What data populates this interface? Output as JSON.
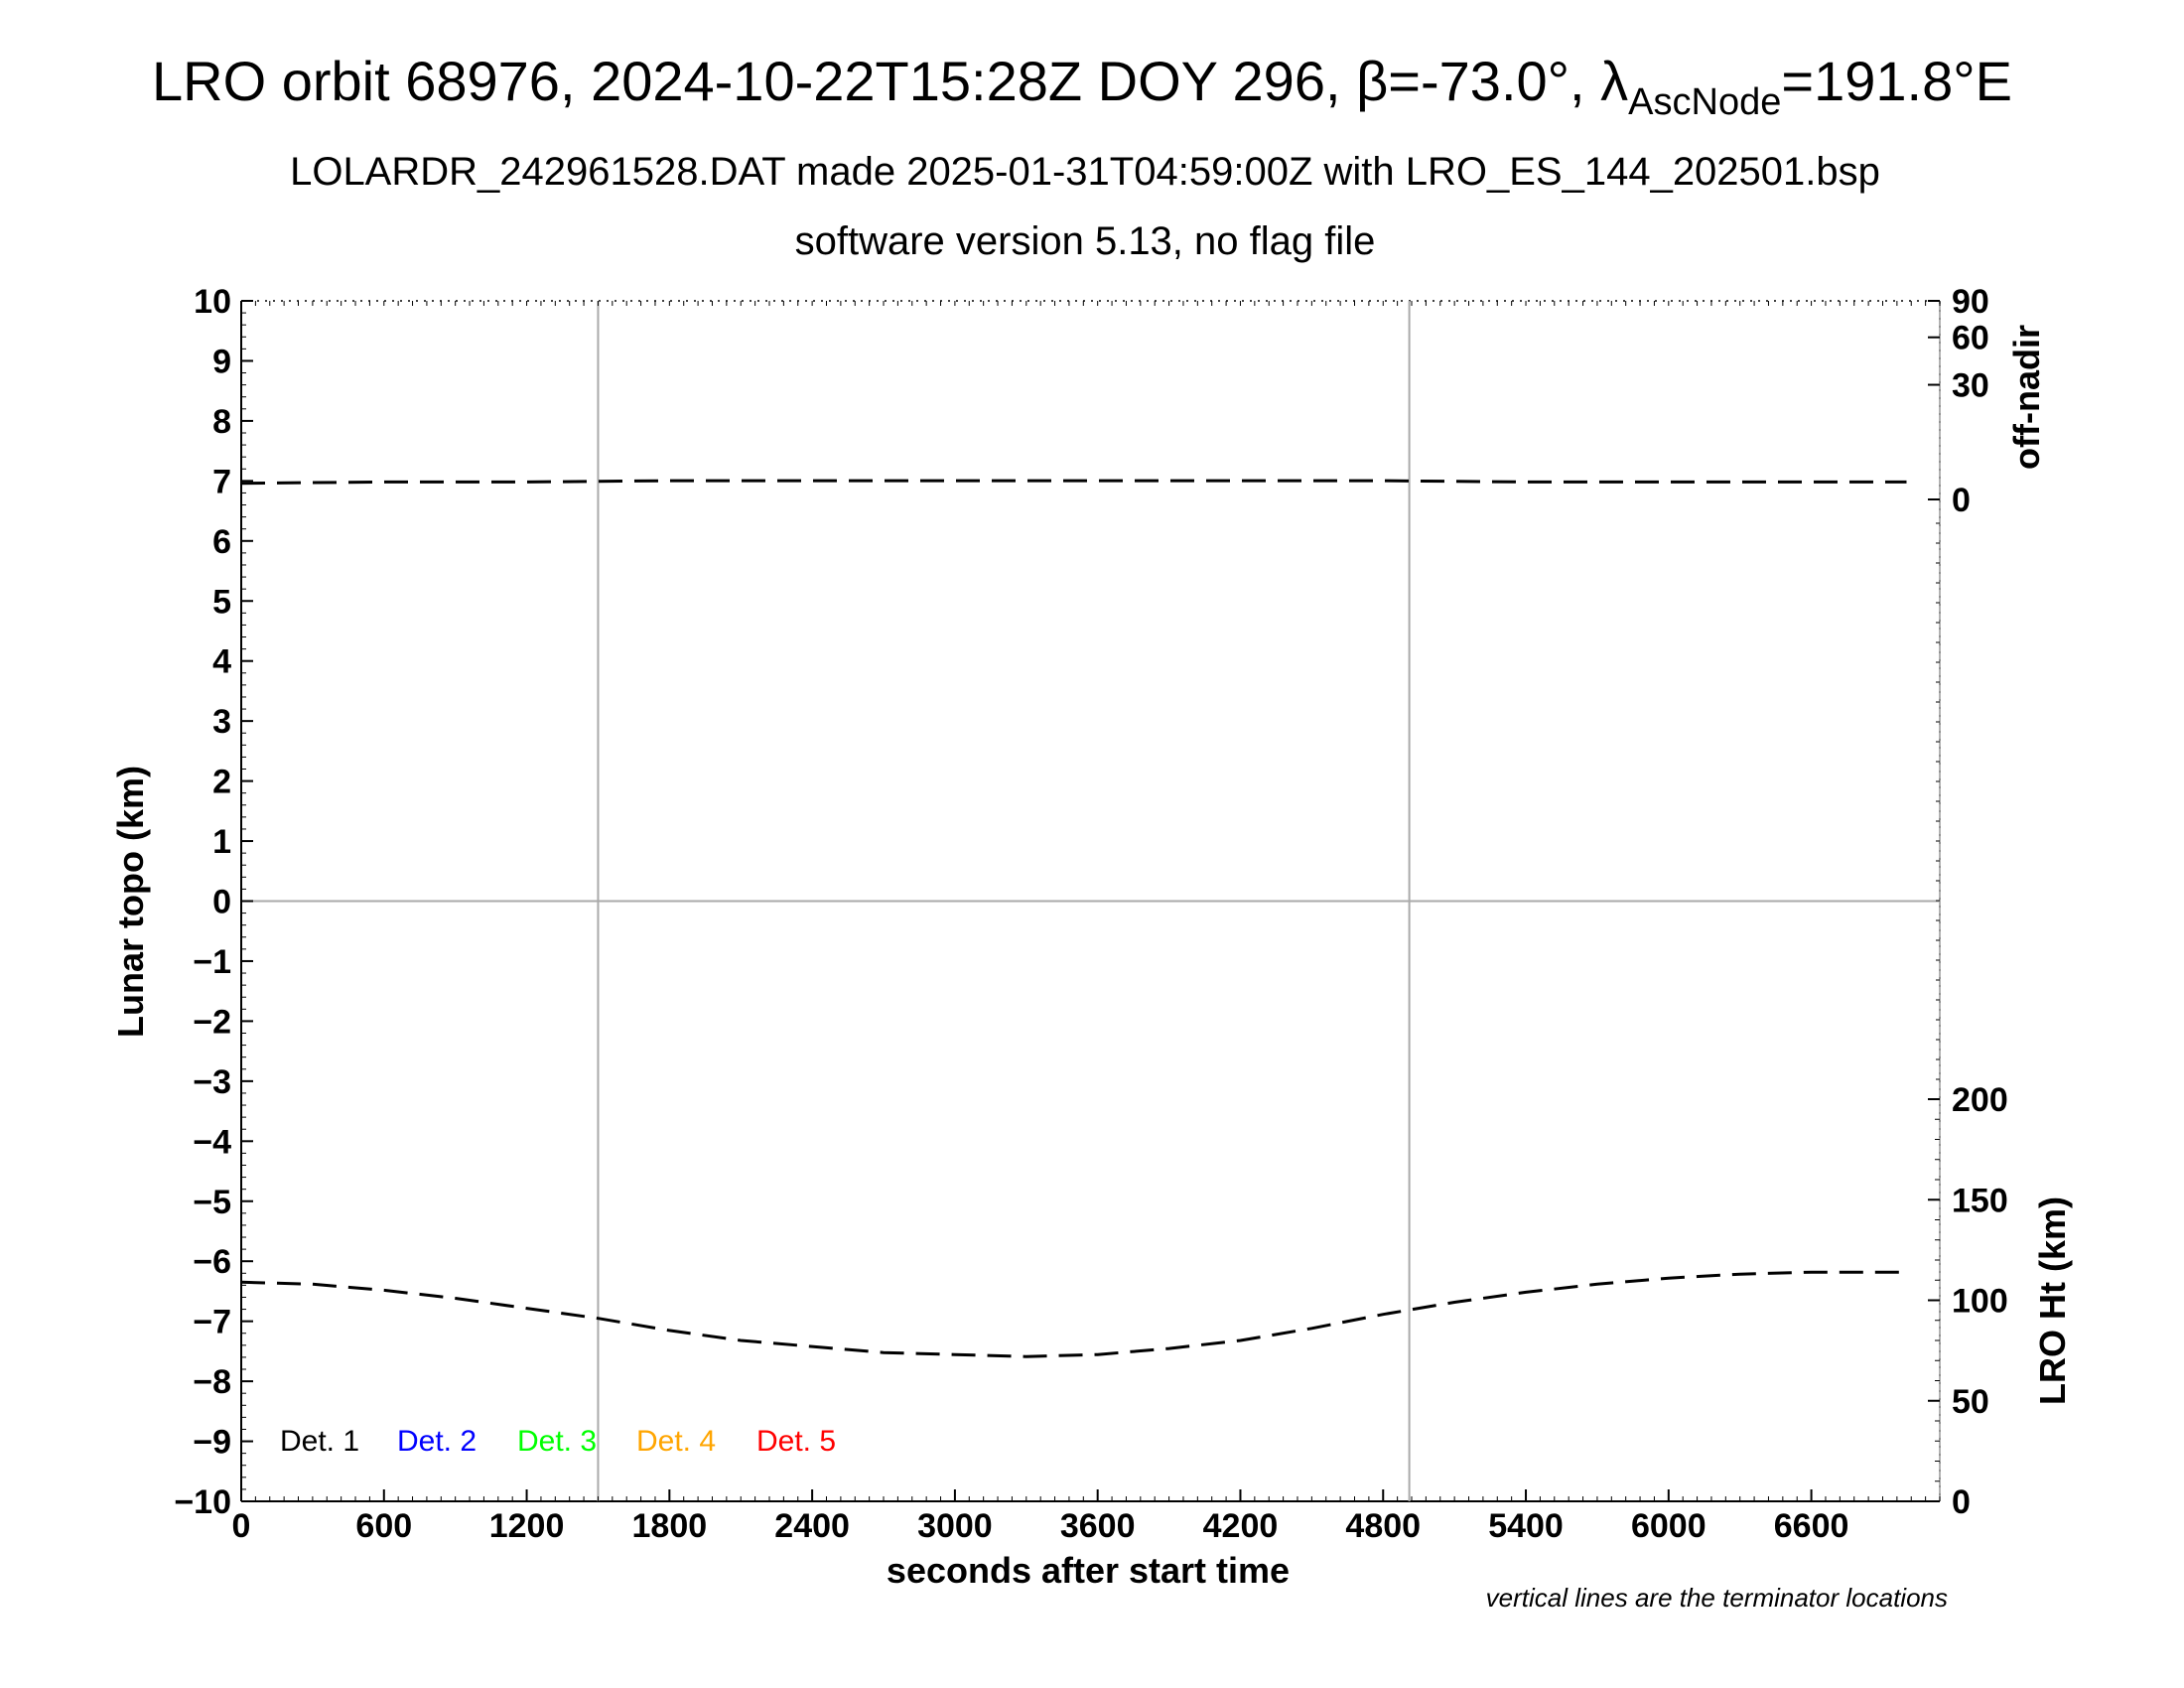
{
  "chart_data": {
    "type": "line",
    "title_main": "LRO orbit 68976, 2024-10-22T15:28Z DOY 296, ",
    "title_beta": "β=-73.0°, ",
    "title_lambda": "λ",
    "title_lambda_sub": "AscNode",
    "title_lambda_val": "=191.8°E",
    "subtitle1": "LOLARDR_242961528.DAT made 2025-01-31T04:59:00Z with LRO_ES_144_202501.bsp",
    "subtitle2": "software version 5.13, no flag file",
    "xlabel": "seconds after start time",
    "ylabel_left": "Lunar topo (km)",
    "ylabel_right_top": "off-nadir",
    "ylabel_right_bottom": "LRO Ht (km)",
    "note": "vertical lines are the terminator locations",
    "xlim": [
      0,
      7140
    ],
    "ylim_left": [
      -10,
      10
    ],
    "x_ticks": [
      "0",
      "600",
      "1200",
      "1800",
      "2400",
      "3000",
      "3600",
      "4200",
      "4800",
      "5400",
      "6000",
      "6600"
    ],
    "x_tick_values": [
      0,
      600,
      1200,
      1800,
      2400,
      3000,
      3600,
      4200,
      4800,
      5400,
      6000,
      6600
    ],
    "y_ticks_left": [
      "10",
      "9",
      "8",
      "7",
      "6",
      "5",
      "4",
      "3",
      "2",
      "1",
      "0",
      "−1",
      "−2",
      "−3",
      "−4",
      "−5",
      "−6",
      "−7",
      "−8",
      "−9",
      "−10"
    ],
    "y_tick_values_left": [
      10,
      9,
      8,
      7,
      6,
      5,
      4,
      3,
      2,
      1,
      0,
      -1,
      -2,
      -3,
      -4,
      -5,
      -6,
      -7,
      -8,
      -9,
      -10
    ],
    "off_nadir_ticks": [
      "90",
      "60",
      "30",
      "0"
    ],
    "off_nadir_tick_values": [
      90,
      60,
      30,
      0
    ],
    "lro_ht_ticks": [
      "200",
      "150",
      "100",
      "50",
      "0"
    ],
    "lro_ht_tick_values": [
      200,
      150,
      100,
      50,
      0
    ],
    "lro_ht_range": [
      0,
      300
    ],
    "terminators": [
      1500,
      4910
    ],
    "zero_line": 0,
    "legend": [
      {
        "label": "Det. 1",
        "color": "#000000"
      },
      {
        "label": "Det. 2",
        "color": "#0000ff"
      },
      {
        "label": "Det. 3",
        "color": "#00ff00"
      },
      {
        "label": "Det. 4",
        "color": "#ffa500"
      },
      {
        "label": "Det. 5",
        "color": "#ff0000"
      }
    ],
    "legend_placement": "bottom-left",
    "series": [
      {
        "axis": "off-nadir",
        "style": "dashed",
        "color": "#000000",
        "x": [
          0,
          600,
          1200,
          1800,
          2400,
          3000,
          3600,
          4200,
          4800,
          5400,
          6000,
          6600,
          7000
        ],
        "values": [
          0.6,
          0.7,
          0.7,
          0.8,
          0.8,
          0.8,
          0.8,
          0.8,
          0.8,
          0.7,
          0.7,
          0.7,
          0.7
        ]
      },
      {
        "axis": "lro-ht",
        "style": "dashed",
        "color": "#000000",
        "x": [
          0,
          300,
          600,
          900,
          1200,
          1500,
          1800,
          2100,
          2400,
          2700,
          3000,
          3300,
          3600,
          3900,
          4200,
          4500,
          4800,
          5100,
          5400,
          5700,
          6000,
          6300,
          6600,
          6900,
          7000
        ],
        "values": [
          109,
          108,
          105,
          101,
          96,
          91,
          85,
          80,
          77,
          74,
          73,
          72,
          73,
          76,
          80,
          86,
          93,
          99,
          104,
          108,
          111,
          113,
          114,
          114,
          114
        ]
      }
    ]
  }
}
